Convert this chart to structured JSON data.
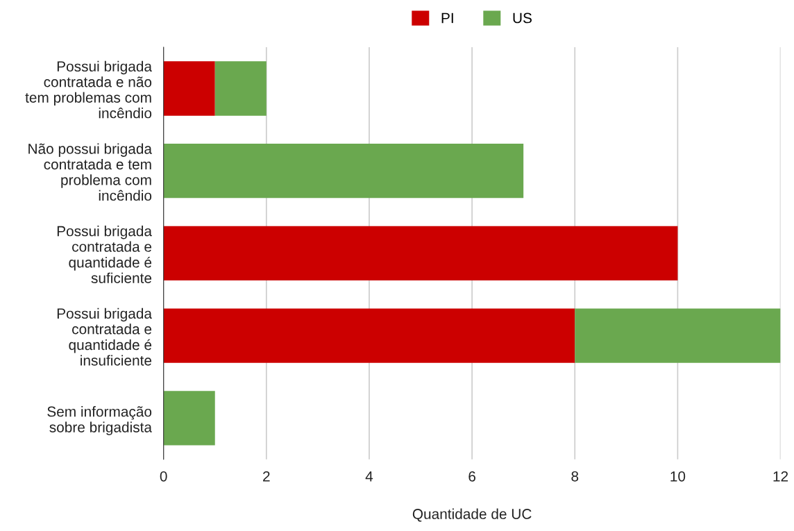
{
  "chart_data": {
    "type": "bar",
    "orientation": "horizontal",
    "stacked": true,
    "categories": [
      "Possui brigada\ncontratada e não\ntem problemas com\nincêndio",
      "Não possui brigada\ncontratada e tem\nproblema com\nincêndio",
      "Possui brigada\ncontratada e\nquantidade é\nsuficiente",
      "Possui brigada\ncontratada e\nquantidade é\ninsuficiente",
      "Sem informação\nsobre brigadista"
    ],
    "series": [
      {
        "name": "PI",
        "color": "#cc0000",
        "values": [
          1,
          0,
          10,
          8,
          0
        ]
      },
      {
        "name": "US",
        "color": "#6aa84f",
        "values": [
          1,
          7,
          0,
          4,
          1
        ]
      }
    ],
    "xlabel": "Quantidade de UC",
    "xlim": [
      0,
      12
    ],
    "xticks": [
      0,
      2,
      4,
      6,
      8,
      10,
      12
    ],
    "grid": "x",
    "legend": "top"
  }
}
